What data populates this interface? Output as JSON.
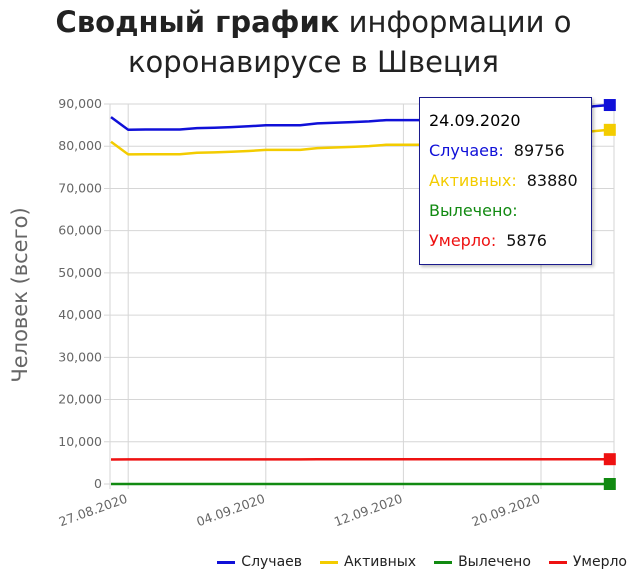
{
  "title": {
    "bold": "Сводный график",
    "rest": " информации о коронавирусе в Швеция"
  },
  "colors": {
    "cases": "#1010d8",
    "active": "#f3cc00",
    "recovered": "#118a11",
    "deaths": "#ee1111"
  },
  "tooltip": {
    "date": "24.09.2020",
    "cases_label": "Случаев:",
    "cases_value": "89756",
    "active_label": "Активных:",
    "active_value": "83880",
    "recovered_label": "Вылечено:",
    "recovered_value": "",
    "deaths_label": "Умерло:",
    "deaths_value": "5876"
  },
  "legend": {
    "cases": "Случаев",
    "active": "Активных",
    "recovered": "Вылечено",
    "deaths": "Умерло"
  },
  "chart_data": {
    "type": "line",
    "ylabel": "Человек (всего)",
    "ylim": [
      0,
      90000
    ],
    "yticks": [
      "0",
      "10,000",
      "20,000",
      "30,000",
      "40,000",
      "50,000",
      "60,000",
      "70,000",
      "80,000",
      "90,000"
    ],
    "x_tick_labels": [
      "27.08.2020",
      "04.09.2020",
      "12.09.2020",
      "20.09.2020"
    ],
    "x": [
      "26.08.2020",
      "27.08.2020",
      "28.08.2020",
      "29.08.2020",
      "30.08.2020",
      "31.08.2020",
      "01.09.2020",
      "02.09.2020",
      "03.09.2020",
      "04.09.2020",
      "05.09.2020",
      "06.09.2020",
      "07.09.2020",
      "08.09.2020",
      "09.09.2020",
      "10.09.2020",
      "11.09.2020",
      "12.09.2020",
      "13.09.2020",
      "14.09.2020",
      "15.09.2020",
      "16.09.2020",
      "17.09.2020",
      "18.09.2020",
      "19.09.2020",
      "20.09.2020",
      "21.09.2020",
      "22.09.2020",
      "23.09.2020",
      "24.09.2020"
    ],
    "grid": true,
    "legend_position": "bottom-right",
    "series": [
      {
        "name": "Случаев",
        "color": "#1010d8",
        "values": [
          86891,
          83898,
          83958,
          83958,
          83958,
          84294,
          84379,
          84532,
          84729,
          84985,
          84985,
          84985,
          85411,
          85558,
          85707,
          85880,
          86194,
          86194,
          86194,
          86505,
          86891,
          87072,
          87345,
          87575,
          87575,
          87575,
          88237,
          88237,
          89436,
          89756
        ]
      },
      {
        "name": "Активных",
        "color": "#f3cc00",
        "values": [
          81061,
          78052,
          78110,
          78110,
          78110,
          78444,
          78528,
          78679,
          78875,
          79131,
          79131,
          79131,
          79553,
          79700,
          79848,
          80021,
          80334,
          80334,
          80334,
          80643,
          81028,
          81209,
          81481,
          81711,
          81711,
          81711,
          82370,
          82370,
          83565,
          83880
        ]
      },
      {
        "name": "Вылечено",
        "color": "#118a11",
        "values": [
          0,
          0,
          0,
          0,
          0,
          0,
          0,
          0,
          0,
          0,
          0,
          0,
          0,
          0,
          0,
          0,
          0,
          0,
          0,
          0,
          0,
          0,
          0,
          0,
          0,
          0,
          0,
          0,
          0,
          0
        ]
      },
      {
        "name": "Умерло",
        "color": "#ee1111",
        "values": [
          5810,
          5821,
          5832,
          5835,
          5835,
          5835,
          5835,
          5837,
          5838,
          5838,
          5838,
          5838,
          5843,
          5843,
          5843,
          5846,
          5846,
          5846,
          5846,
          5846,
          5846,
          5851,
          5851,
          5851,
          5851,
          5860,
          5865,
          5865,
          5871,
          5876
        ]
      }
    ]
  }
}
